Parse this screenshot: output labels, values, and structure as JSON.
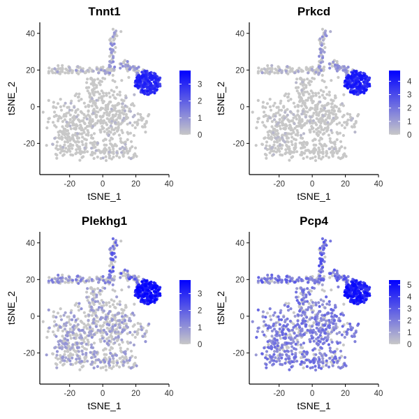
{
  "chart_data": [
    {
      "type": "scatter",
      "title": "Tnnt1",
      "xlabel": "tSNE_1",
      "ylabel": "tSNE_2",
      "xlim": [
        -38,
        40
      ],
      "ylim": [
        -37,
        46
      ],
      "x_ticks": [
        -20,
        0,
        20,
        40
      ],
      "y_ticks": [
        -20,
        0,
        20,
        40
      ],
      "colorbar": {
        "min": 0,
        "max": 3.8,
        "ticks": [
          0,
          1,
          2,
          3
        ],
        "low_color": "#C8C8C8",
        "high_color": "#0000FF"
      },
      "expression": {
        "cluster": 3.2,
        "arm": 1.0,
        "background": 0.05,
        "rate": 0.06
      }
    },
    {
      "type": "scatter",
      "title": "Prkcd",
      "xlabel": "tSNE_1",
      "ylabel": "tSNE_2",
      "xlim": [
        -38,
        40
      ],
      "ylim": [
        -37,
        46
      ],
      "x_ticks": [
        -20,
        0,
        20,
        40
      ],
      "y_ticks": [
        -20,
        0,
        20,
        40
      ],
      "colorbar": {
        "min": 0,
        "max": 4.8,
        "ticks": [
          0,
          1,
          2,
          3,
          4
        ],
        "low_color": "#C8C8C8",
        "high_color": "#0000FF"
      },
      "expression": {
        "cluster": 4.2,
        "arm": 1.2,
        "background": 0.05,
        "rate": 0.07
      }
    },
    {
      "type": "scatter",
      "title": "Plekhg1",
      "xlabel": "tSNE_1",
      "ylabel": "tSNE_2",
      "xlim": [
        -38,
        40
      ],
      "ylim": [
        -37,
        46
      ],
      "x_ticks": [
        -20,
        0,
        20,
        40
      ],
      "y_ticks": [
        -20,
        0,
        20,
        40
      ],
      "colorbar": {
        "min": 0,
        "max": 3.8,
        "ticks": [
          0,
          1,
          2,
          3
        ],
        "low_color": "#C8C8C8",
        "high_color": "#0000FF"
      },
      "expression": {
        "cluster": 3.6,
        "arm": 1.8,
        "background": 0.5,
        "rate": 0.35
      }
    },
    {
      "type": "scatter",
      "title": "Pcp4",
      "xlabel": "tSNE_1",
      "ylabel": "tSNE_2",
      "xlim": [
        -38,
        40
      ],
      "ylim": [
        -37,
        46
      ],
      "x_ticks": [
        -20,
        0,
        20,
        40
      ],
      "y_ticks": [
        -20,
        0,
        20,
        40
      ],
      "colorbar": {
        "min": 0,
        "max": 5.4,
        "ticks": [
          0,
          1,
          2,
          3,
          4,
          5
        ],
        "low_color": "#C8C8C8",
        "high_color": "#0000FF"
      },
      "expression": {
        "cluster": 5.0,
        "arm": 2.6,
        "background": 1.6,
        "rate": 0.72
      }
    }
  ]
}
